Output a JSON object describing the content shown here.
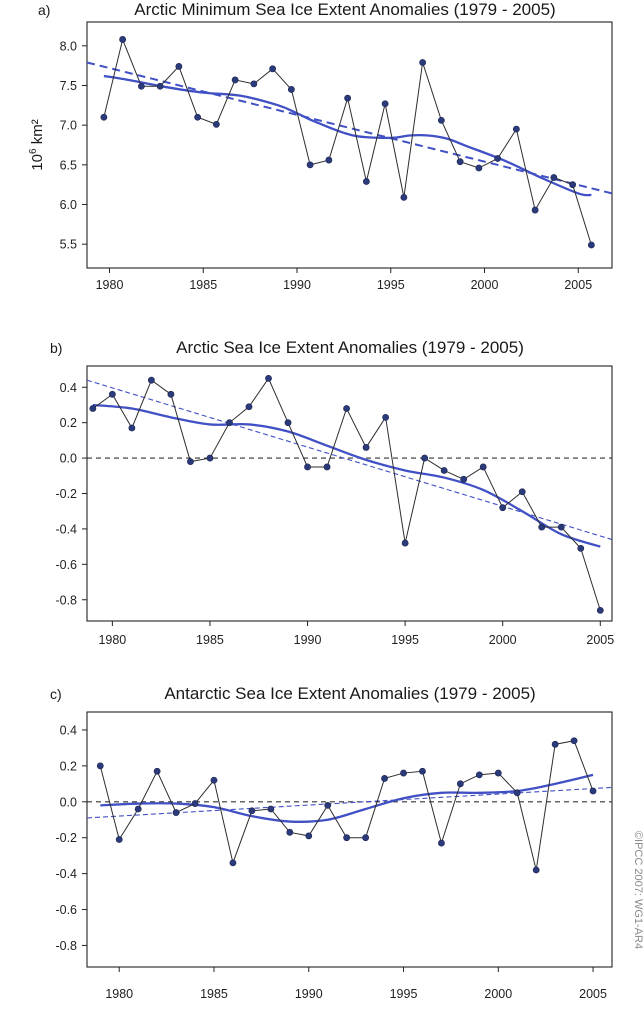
{
  "credit": "©IPCC 2007: WG1-AR4",
  "colors": {
    "series": "#2d2d2d",
    "point": "#2b3a7a",
    "smooth": "#4150c4",
    "trend": "#4150c4",
    "zero": "#333333"
  },
  "chart_data": [
    {
      "type": "line",
      "panel_label": "a)",
      "title": "Arctic Minimum Sea Ice Extent Anomalies (1979 - 2005)",
      "ylabel": "10",
      "ylabel_exp": "6",
      "ylabel_unit": " km²",
      "xlim": [
        1978.8,
        2006.8
      ],
      "ylim": [
        5.2,
        8.3
      ],
      "xticks": [
        1980,
        1985,
        1990,
        1995,
        2000,
        2005
      ],
      "yticks": [
        5.5,
        6.0,
        6.5,
        7.0,
        7.5,
        8.0
      ],
      "ytick_labels": [
        "5.5",
        "6.0",
        "6.5",
        "7.0",
        "7.5",
        "8.0"
      ],
      "zero_line": false,
      "x": [
        1979.7,
        1980.7,
        1981.7,
        1982.7,
        1983.7,
        1984.7,
        1985.7,
        1986.7,
        1987.7,
        1988.7,
        1989.7,
        1990.7,
        1991.7,
        1992.7,
        1993.7,
        1994.7,
        1995.7,
        1996.7,
        1997.7,
        1998.7,
        1999.7,
        2000.7,
        2001.7,
        2002.7,
        2003.7,
        2004.7,
        2005.7
      ],
      "values": [
        7.1,
        8.08,
        7.49,
        7.49,
        7.74,
        7.1,
        7.01,
        7.57,
        7.52,
        7.71,
        7.45,
        6.5,
        6.56,
        7.34,
        6.29,
        7.27,
        6.09,
        7.79,
        7.06,
        6.54,
        6.46,
        6.58,
        6.95,
        5.93,
        6.34,
        6.25,
        5.49
      ],
      "smooth_x": [
        1979.7,
        1981,
        1983,
        1985,
        1987,
        1989,
        1990,
        1991,
        1993,
        1995,
        1996,
        1997,
        1998,
        1999,
        2001,
        2003,
        2005,
        2005.7
      ],
      "smooth": [
        7.62,
        7.57,
        7.48,
        7.41,
        7.37,
        7.25,
        7.15,
        7.04,
        6.87,
        6.84,
        6.87,
        6.87,
        6.83,
        6.74,
        6.56,
        6.34,
        6.14,
        6.12
      ],
      "trend": {
        "x": [
          1978.8,
          2006.8
        ],
        "y": [
          7.79,
          6.14
        ]
      }
    },
    {
      "type": "line",
      "panel_label": "b)",
      "title": "Arctic Sea Ice Extent Anomalies (1979 - 2005)",
      "xlim": [
        1978.7,
        2005.6
      ],
      "ylim": [
        -0.92,
        0.52
      ],
      "xticks": [
        1980,
        1985,
        1990,
        1995,
        2000,
        2005
      ],
      "yticks": [
        -0.8,
        -0.6,
        -0.4,
        -0.2,
        0.0,
        0.2,
        0.4
      ],
      "ytick_labels": [
        "-0.8",
        "-0.6",
        "-0.4",
        "-0.2",
        "0.0",
        "0.2",
        "0.4"
      ],
      "zero_line": true,
      "x": [
        1979,
        1980,
        1981,
        1982,
        1983,
        1984,
        1985,
        1986,
        1987,
        1988,
        1989,
        1990,
        1991,
        1992,
        1993,
        1994,
        1995,
        1996,
        1997,
        1998,
        1999,
        2000,
        2001,
        2002,
        2003,
        2004,
        2005
      ],
      "values": [
        0.28,
        0.36,
        0.17,
        0.44,
        0.36,
        -0.02,
        0.0,
        0.2,
        0.29,
        0.45,
        0.2,
        -0.05,
        -0.05,
        0.28,
        0.06,
        0.23,
        -0.48,
        0.0,
        -0.07,
        -0.12,
        -0.05,
        -0.28,
        -0.19,
        -0.39,
        -0.39,
        -0.51,
        -0.86
      ],
      "smooth_x": [
        1979,
        1981,
        1983,
        1985,
        1987,
        1989,
        1991,
        1993,
        1995,
        1997,
        1999,
        2001,
        2003,
        2005
      ],
      "smooth": [
        0.3,
        0.28,
        0.23,
        0.19,
        0.19,
        0.15,
        0.07,
        -0.01,
        -0.07,
        -0.11,
        -0.18,
        -0.3,
        -0.43,
        -0.5
      ],
      "trend": {
        "x": [
          1978.7,
          2005.6
        ],
        "y": [
          0.44,
          -0.46
        ]
      }
    },
    {
      "type": "line",
      "panel_label": "c)",
      "title": "Antarctic Sea Ice Extent Anomalies (1979 - 2005)",
      "xlim": [
        1978.3,
        2006.0
      ],
      "ylim": [
        -0.92,
        0.5
      ],
      "xticks": [
        1980,
        1985,
        1990,
        1995,
        2000,
        2005
      ],
      "yticks": [
        -0.8,
        -0.6,
        -0.4,
        -0.2,
        0.0,
        0.2,
        0.4
      ],
      "ytick_labels": [
        "-0.8",
        "-0.6",
        "-0.4",
        "-0.2",
        "0.0",
        "0.2",
        "0.4"
      ],
      "zero_line": true,
      "x": [
        1979,
        1980,
        1981,
        1982,
        1983,
        1984,
        1985,
        1986,
        1987,
        1988,
        1989,
        1990,
        1991,
        1992,
        1993,
        1994,
        1995,
        1996,
        1997,
        1998,
        1999,
        2000,
        2001,
        2002,
        2003,
        2004,
        2005
      ],
      "values": [
        0.2,
        -0.21,
        -0.04,
        0.17,
        -0.06,
        -0.01,
        0.12,
        -0.34,
        -0.05,
        -0.04,
        -0.17,
        -0.19,
        -0.02,
        -0.2,
        -0.2,
        0.13,
        0.16,
        0.17,
        -0.23,
        0.1,
        0.15,
        0.16,
        0.05,
        -0.38,
        0.32,
        0.34,
        0.06
      ],
      "smooth_x": [
        1979,
        1981,
        1983,
        1985,
        1987,
        1989,
        1991,
        1993,
        1995,
        1997,
        1999,
        2001,
        2003,
        2005
      ],
      "smooth": [
        -0.02,
        -0.01,
        -0.01,
        -0.03,
        -0.08,
        -0.11,
        -0.1,
        -0.04,
        0.02,
        0.05,
        0.05,
        0.06,
        0.1,
        0.15
      ],
      "trend": {
        "x": [
          1978.3,
          2006.0
        ],
        "y": [
          -0.09,
          0.08
        ]
      }
    }
  ]
}
